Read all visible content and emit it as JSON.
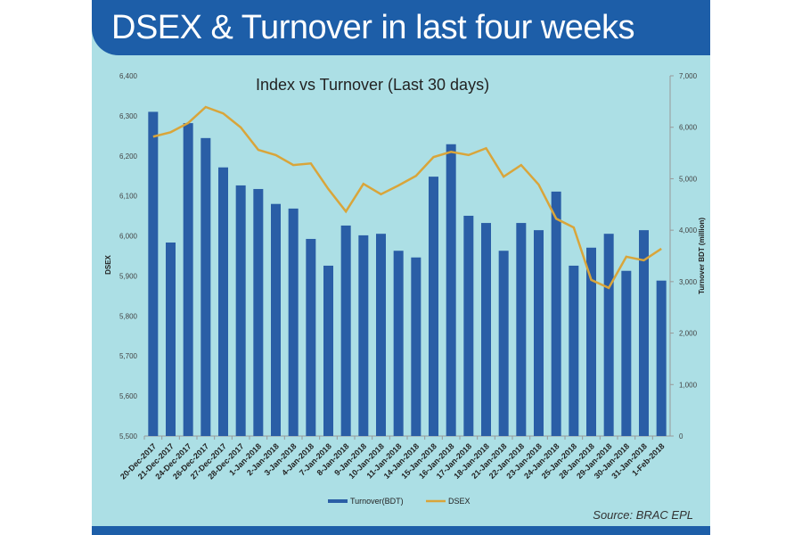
{
  "header": {
    "title": "DSEX & Turnover in last four weeks"
  },
  "source": "Source: BRAC EPL",
  "colors": {
    "bar": "#2a5ea6",
    "line": "#d9a53a",
    "background": "#acdfe5",
    "header": "#1d5ea8"
  },
  "chart_data": {
    "type": "bar",
    "title": "Index vs Turnover (Last 30 days)",
    "ylabel": "DSEX",
    "y2label": "Turnover BDT (million)",
    "ylim": [
      5500,
      6400
    ],
    "y2lim": [
      0,
      7000
    ],
    "yticks": [
      "5,500",
      "5,600",
      "5,700",
      "5,800",
      "5,900",
      "6,000",
      "6,100",
      "6,200",
      "6,300",
      "6,400"
    ],
    "y2ticks": [
      "0",
      "1,000",
      "2,000",
      "3,000",
      "4,000",
      "5,000",
      "6,000",
      "7,000"
    ],
    "categories": [
      "20-Dec-2017",
      "21-Dec-2017",
      "24-Dec-2017",
      "26-Dec-2017",
      "27-Dec-2017",
      "28-Dec-2017",
      "1-Jan-2018",
      "2-Jan-2018",
      "3-Jan-2018",
      "4-Jan-2018",
      "7-Jan-2018",
      "8-Jan-2018",
      "9-Jan-2018",
      "10-Jan-2018",
      "11-Jan-2018",
      "14-Jan-2018",
      "15-Jan-2018",
      "16-Jan-2018",
      "17-Jan-2018",
      "18-Jan-2018",
      "21-Jan-2018",
      "22-Jan-2018",
      "23-Jan-2018",
      "24-Jan-2018",
      "25-Jan-2018",
      "28-Jan-2018",
      "29-Jan-2018",
      "30-Jan-2018",
      "31-Jan-2018",
      "1-Feb-2018"
    ],
    "series": [
      {
        "name": "Turnover(BDT)",
        "type": "bar",
        "axis": "right",
        "values": [
          6300,
          3760,
          6080,
          5790,
          5220,
          4870,
          4800,
          4510,
          4420,
          3830,
          3310,
          4090,
          3900,
          3930,
          3600,
          3470,
          5040,
          5670,
          4280,
          4140,
          3600,
          4140,
          4000,
          4750,
          3310,
          3660,
          3930,
          3210,
          4000,
          3020
        ]
      },
      {
        "name": "DSEX",
        "type": "line",
        "axis": "left",
        "values": [
          6248,
          6259,
          6282,
          6322,
          6306,
          6271,
          6215,
          6202,
          6177,
          6181,
          6117,
          6061,
          6130,
          6104,
          6126,
          6150,
          6197,
          6210,
          6202,
          6219,
          6148,
          6177,
          6128,
          6043,
          6021,
          5890,
          5870,
          5948,
          5939,
          5968
        ]
      }
    ],
    "legend": "bottom-center",
    "grid": false
  }
}
